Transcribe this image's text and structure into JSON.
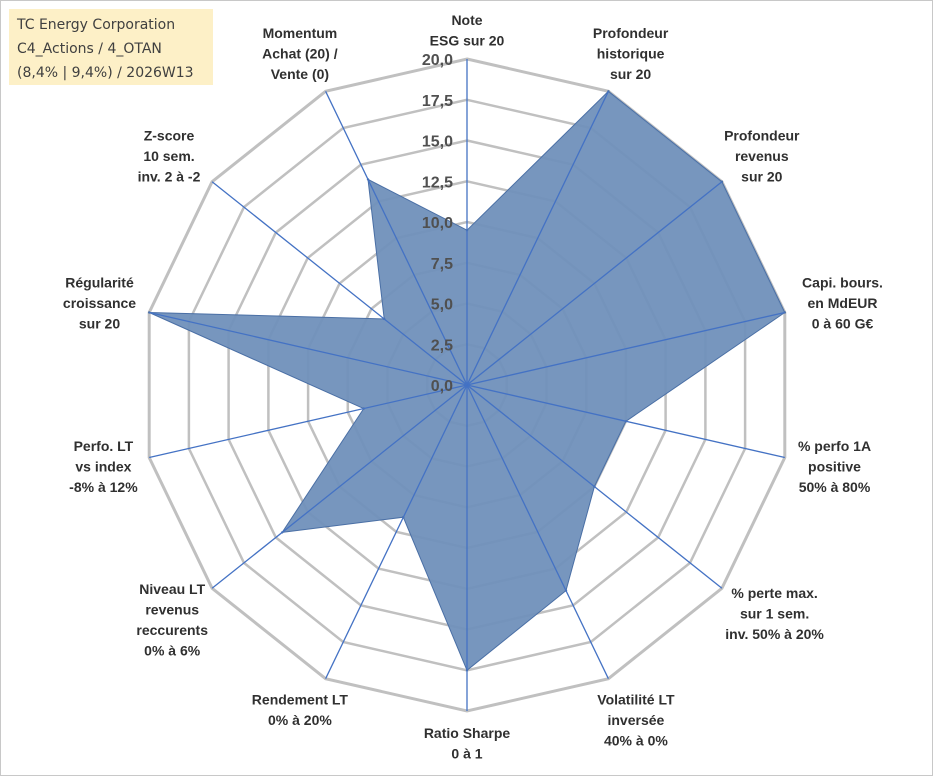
{
  "info": {
    "company": "TC Energy Corporation",
    "classification": "C4_Actions / 4_OTAN",
    "performance_period": "(8,4% | 9,4%) / 2026W13"
  },
  "colors": {
    "series_fill": "#7090bb",
    "series_line": "#4a6fa5",
    "grid": "#c0c0c0",
    "spoke": "#4472c4",
    "info_bg": "#fdf0c7"
  },
  "chart_data": {
    "type": "radar",
    "title": "",
    "range": [
      0,
      20
    ],
    "ticks": [
      "0,0",
      "2,5",
      "5,0",
      "7,5",
      "10,0",
      "12,5",
      "15,0",
      "17,5",
      "20,0"
    ],
    "axes": [
      {
        "label": [
          "Note",
          "ESG sur 20"
        ],
        "value": 9.5
      },
      {
        "label": [
          "Profondeur",
          "historique",
          "sur 20"
        ],
        "value": 20
      },
      {
        "label": [
          "Profondeur",
          "revenus",
          "sur 20"
        ],
        "value": 20
      },
      {
        "label": [
          "Capi. bours.",
          "en MdEUR",
          "0 à 60 G€"
        ],
        "value": 20
      },
      {
        "label": [
          "% perfo 1A",
          "positive",
          "50% à 80%"
        ],
        "value": 10
      },
      {
        "label": [
          "% perte max.",
          "sur 1 sem.",
          "inv. 50% à 20%"
        ],
        "value": 10
      },
      {
        "label": [
          "Volatilité LT",
          "inversée",
          "40% à 0%"
        ],
        "value": 14
      },
      {
        "label": [
          "Ratio Sharpe",
          "0 à 1"
        ],
        "value": 17.5
      },
      {
        "label": [
          "Rendement LT",
          "0% à 20%"
        ],
        "value": 9
      },
      {
        "label": [
          "Niveau LT",
          "revenus",
          "reccurents",
          "0% à 6%"
        ],
        "value": 14.5
      },
      {
        "label": [
          "Perfo. LT",
          "vs index",
          "-8% à 12%"
        ],
        "value": 6.5
      },
      {
        "label": [
          "Régularité",
          "croissance",
          "sur 20"
        ],
        "value": 20
      },
      {
        "label": [
          "Z-score",
          "10 sem.",
          "inv. 2 à -2"
        ],
        "value": 6.5
      },
      {
        "label": [
          "Momentum",
          "Achat (20) /",
          "Vente (0)"
        ],
        "value": 14
      }
    ]
  }
}
